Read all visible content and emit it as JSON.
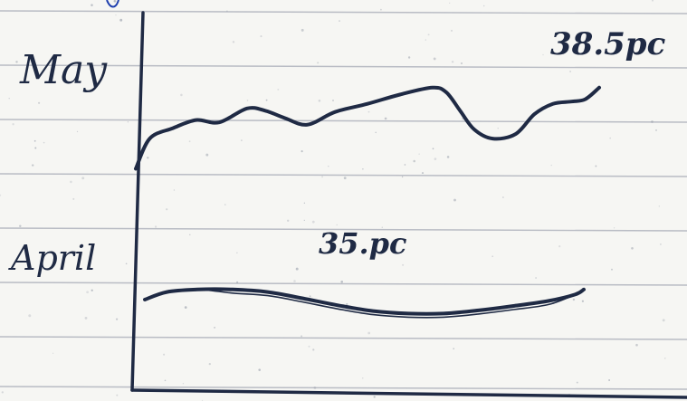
{
  "chart_data": {
    "type": "line",
    "title": "",
    "xlabel": "",
    "ylabel": "",
    "grid": true,
    "ink_color": "#1f2a44",
    "line_color": "#b9bcc4",
    "paper_color": "#f6f6f3",
    "series": [
      {
        "name": "May",
        "annotation": "38.5pc",
        "shape": [
          [
            0.0,
            0.2
          ],
          [
            0.03,
            0.46
          ],
          [
            0.08,
            0.55
          ],
          [
            0.13,
            0.62
          ],
          [
            0.18,
            0.6
          ],
          [
            0.24,
            0.72
          ],
          [
            0.28,
            0.7
          ],
          [
            0.32,
            0.64
          ],
          [
            0.37,
            0.58
          ],
          [
            0.43,
            0.69
          ],
          [
            0.5,
            0.76
          ],
          [
            0.57,
            0.84
          ],
          [
            0.64,
            0.9
          ],
          [
            0.67,
            0.86
          ],
          [
            0.7,
            0.7
          ],
          [
            0.73,
            0.54
          ],
          [
            0.77,
            0.46
          ],
          [
            0.82,
            0.5
          ],
          [
            0.86,
            0.67
          ],
          [
            0.9,
            0.76
          ],
          [
            0.94,
            0.78
          ],
          [
            0.97,
            0.8
          ],
          [
            1.0,
            0.9
          ]
        ]
      },
      {
        "name": "April",
        "annotation": "35.pc",
        "shape": [
          [
            0.0,
            0.5
          ],
          [
            0.05,
            0.62
          ],
          [
            0.12,
            0.66
          ],
          [
            0.2,
            0.66
          ],
          [
            0.28,
            0.62
          ],
          [
            0.36,
            0.52
          ],
          [
            0.44,
            0.41
          ],
          [
            0.52,
            0.32
          ],
          [
            0.6,
            0.28
          ],
          [
            0.68,
            0.28
          ],
          [
            0.76,
            0.33
          ],
          [
            0.84,
            0.4
          ],
          [
            0.92,
            0.48
          ],
          [
            0.98,
            0.58
          ],
          [
            1.0,
            0.66
          ]
        ]
      }
    ]
  }
}
